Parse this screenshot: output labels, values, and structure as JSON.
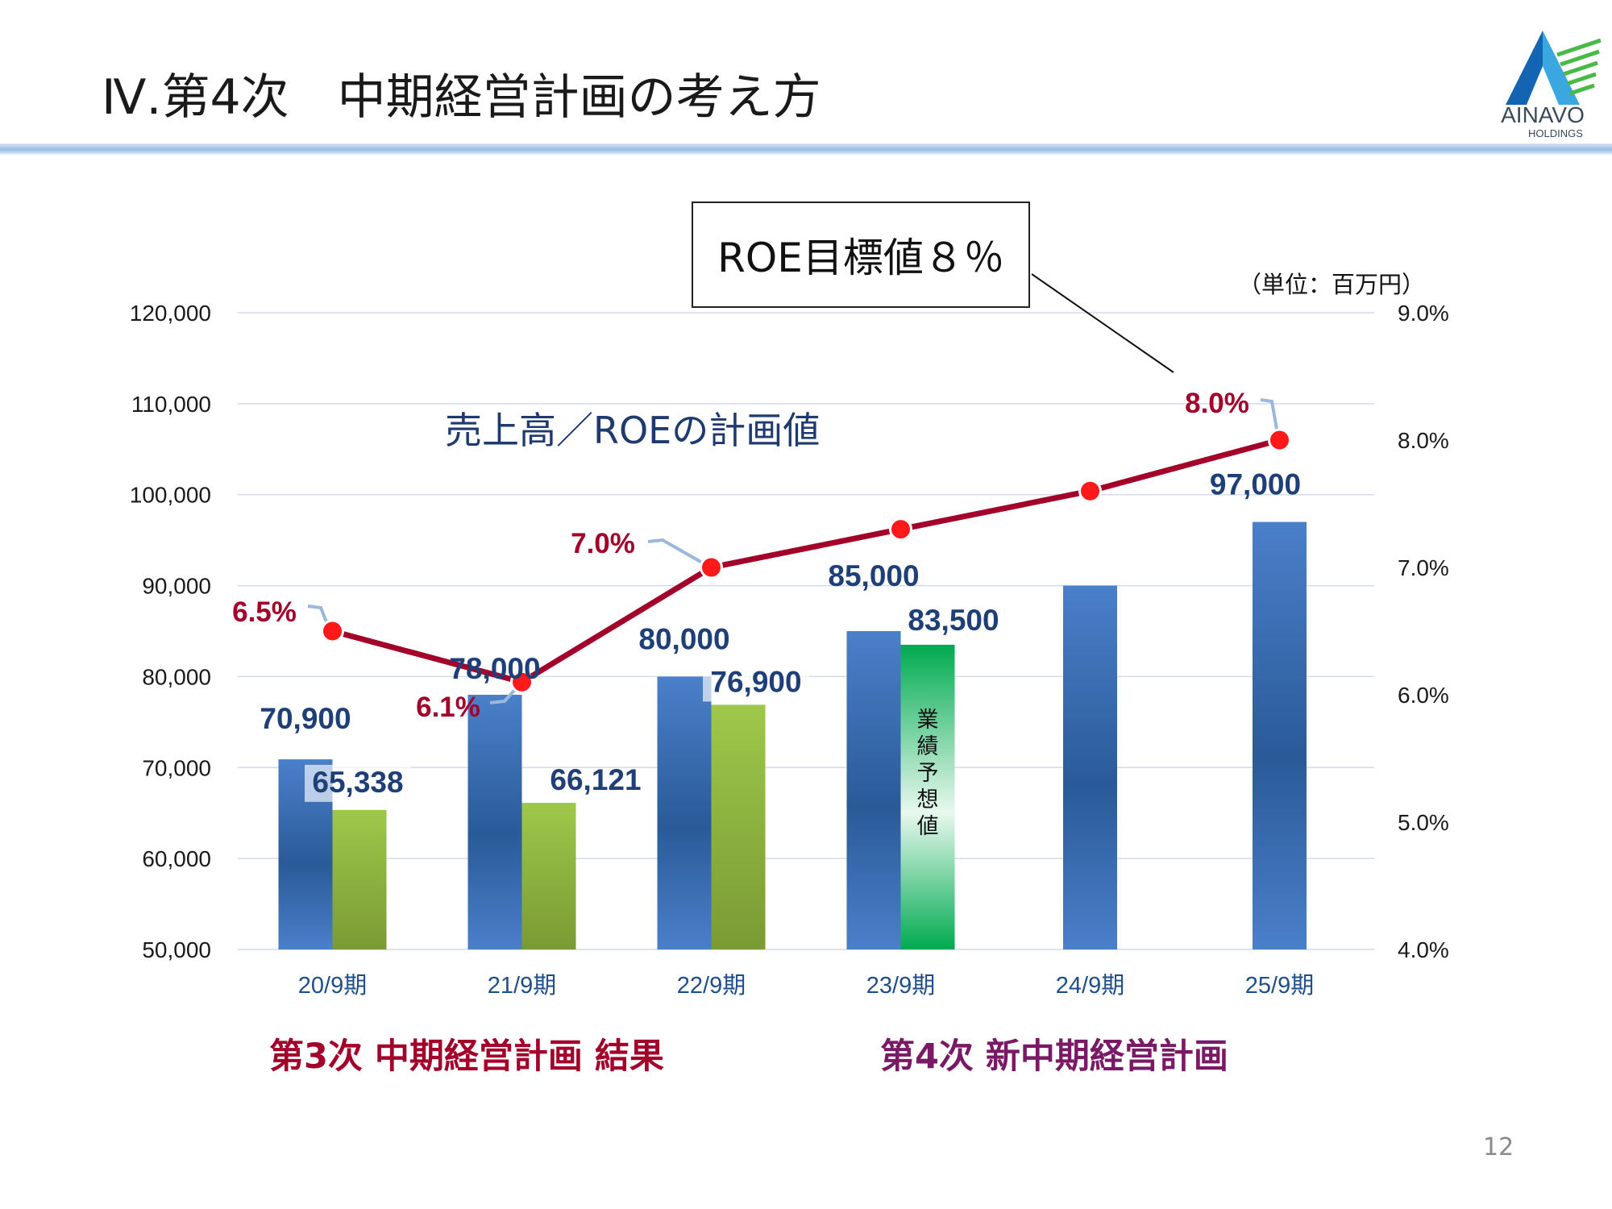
{
  "header": {
    "title": "Ⅳ.第4次　中期経営計画の考え方",
    "logo_text": "AINAVO",
    "logo_subtext": "HOLDINGS",
    "logo_icon": "ainavo-a-mountain-logo",
    "rule_color": "#9bbce4"
  },
  "callout": {
    "text": "ROE目標値８％"
  },
  "footer": {
    "page_number": "12"
  },
  "sections": {
    "left": "第3次  中期経営計画 結果",
    "right": "第4次  新中期経営計画"
  },
  "colors": {
    "plan_bar": "#4a7fc7",
    "result_bar": "#8db53c",
    "forecast_bar": "#00a84f",
    "roe_line": "#a3002a",
    "roe_marker": "#ff0000"
  },
  "chart_data": {
    "type": "bar",
    "title": "売上高／ROEの計画値",
    "unit_label": "（単位：百万円）",
    "categories": [
      "20/9期",
      "21/9期",
      "22/9期",
      "23/9期",
      "24/9期",
      "25/9期"
    ],
    "y_left": {
      "min": 50000,
      "max": 120000,
      "ticks": [
        "50,000",
        "60,000",
        "70,000",
        "80,000",
        "90,000",
        "100,000",
        "110,000",
        "120,000"
      ]
    },
    "y_right": {
      "min": 4.0,
      "max": 9.0,
      "ticks": [
        "4.0%",
        "5.0%",
        "6.0%",
        "7.0%",
        "8.0%",
        "9.0%"
      ]
    },
    "grid": true,
    "series": [
      {
        "role": "plan",
        "values": [
          70900,
          78000,
          80000,
          85000,
          90000,
          97000
        ],
        "labels": [
          "70,900",
          "78,000",
          "80,000",
          "85,000",
          "",
          "97,000"
        ]
      },
      {
        "role": "result",
        "values": [
          65338,
          66121,
          76900,
          83500,
          null,
          null
        ],
        "labels": [
          "65,338",
          "66,121",
          "76,900",
          "83,500",
          "",
          ""
        ],
        "forecast_note": "業績予想値",
        "forecast_index": 3
      },
      {
        "role": "roe",
        "axis": "right",
        "values": [
          6.5,
          6.1,
          7.0,
          7.3,
          7.6,
          8.0
        ],
        "labels": [
          "6.5%",
          "6.1%",
          "7.0%",
          "",
          "",
          "8.0%"
        ]
      }
    ]
  }
}
